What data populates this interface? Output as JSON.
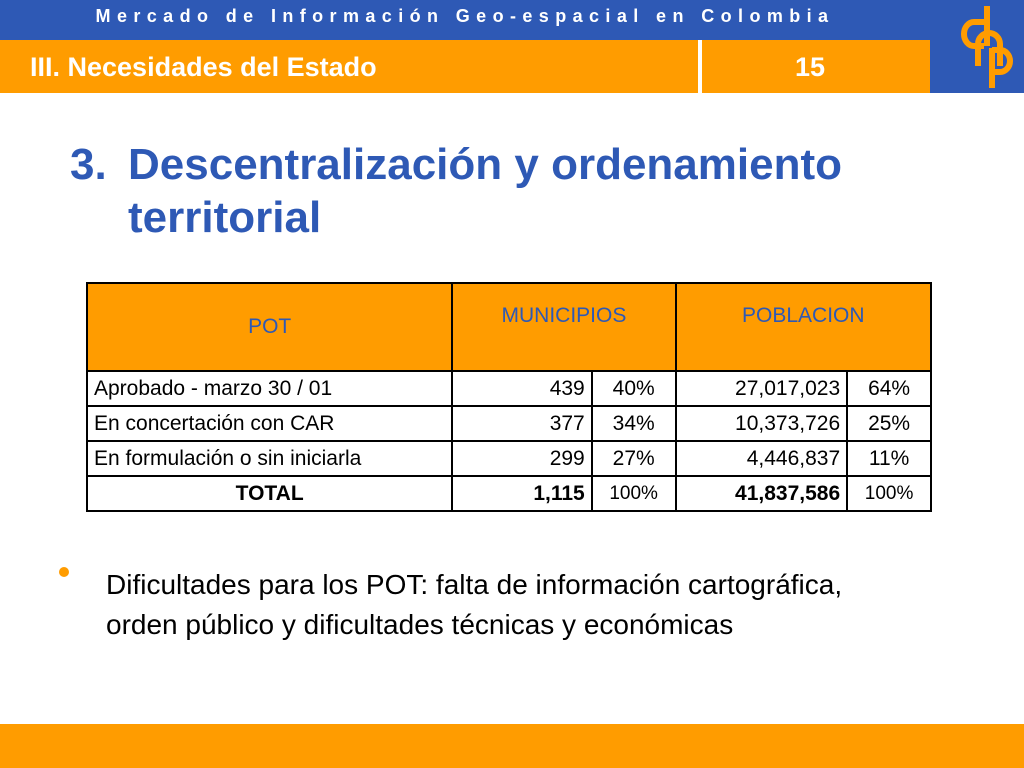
{
  "header": {
    "top_title": "Mercado de Información Geo-espacial en Colombia",
    "section_title": "III. Necesidades del Estado",
    "page_number": "15",
    "logo_letters": "dnp"
  },
  "slide": {
    "heading_number": "3.",
    "heading_text": "Descentralización y ordenamiento territorial"
  },
  "table": {
    "headers": {
      "pot": "POT",
      "municipios": "MUNICIPIOS",
      "poblacion": "POBLACION"
    },
    "rows": [
      {
        "label": "Aprobado - marzo 30 / 01",
        "municipios": "439",
        "municipios_pct": "40%",
        "poblacion": "27,017,023",
        "poblacion_pct": "64%"
      },
      {
        "label": "En concertación con CAR",
        "municipios": "377",
        "municipios_pct": "34%",
        "poblacion": "10,373,726",
        "poblacion_pct": "25%"
      },
      {
        "label": "En formulación o sin iniciarla",
        "municipios": "299",
        "municipios_pct": "27%",
        "poblacion": "4,446,837",
        "poblacion_pct": "11%"
      }
    ],
    "total": {
      "label": "TOTAL",
      "municipios": "1,115",
      "municipios_pct": "100%",
      "poblacion": "41,837,586",
      "poblacion_pct": "100%"
    }
  },
  "bullets": [
    "Dificultades para los POT: falta de información cartográfica, orden público y dificultades técnicas y económicas"
  ],
  "colors": {
    "blue": "#2e59b5",
    "orange": "#ff9c00",
    "white": "#ffffff",
    "black": "#000000"
  }
}
